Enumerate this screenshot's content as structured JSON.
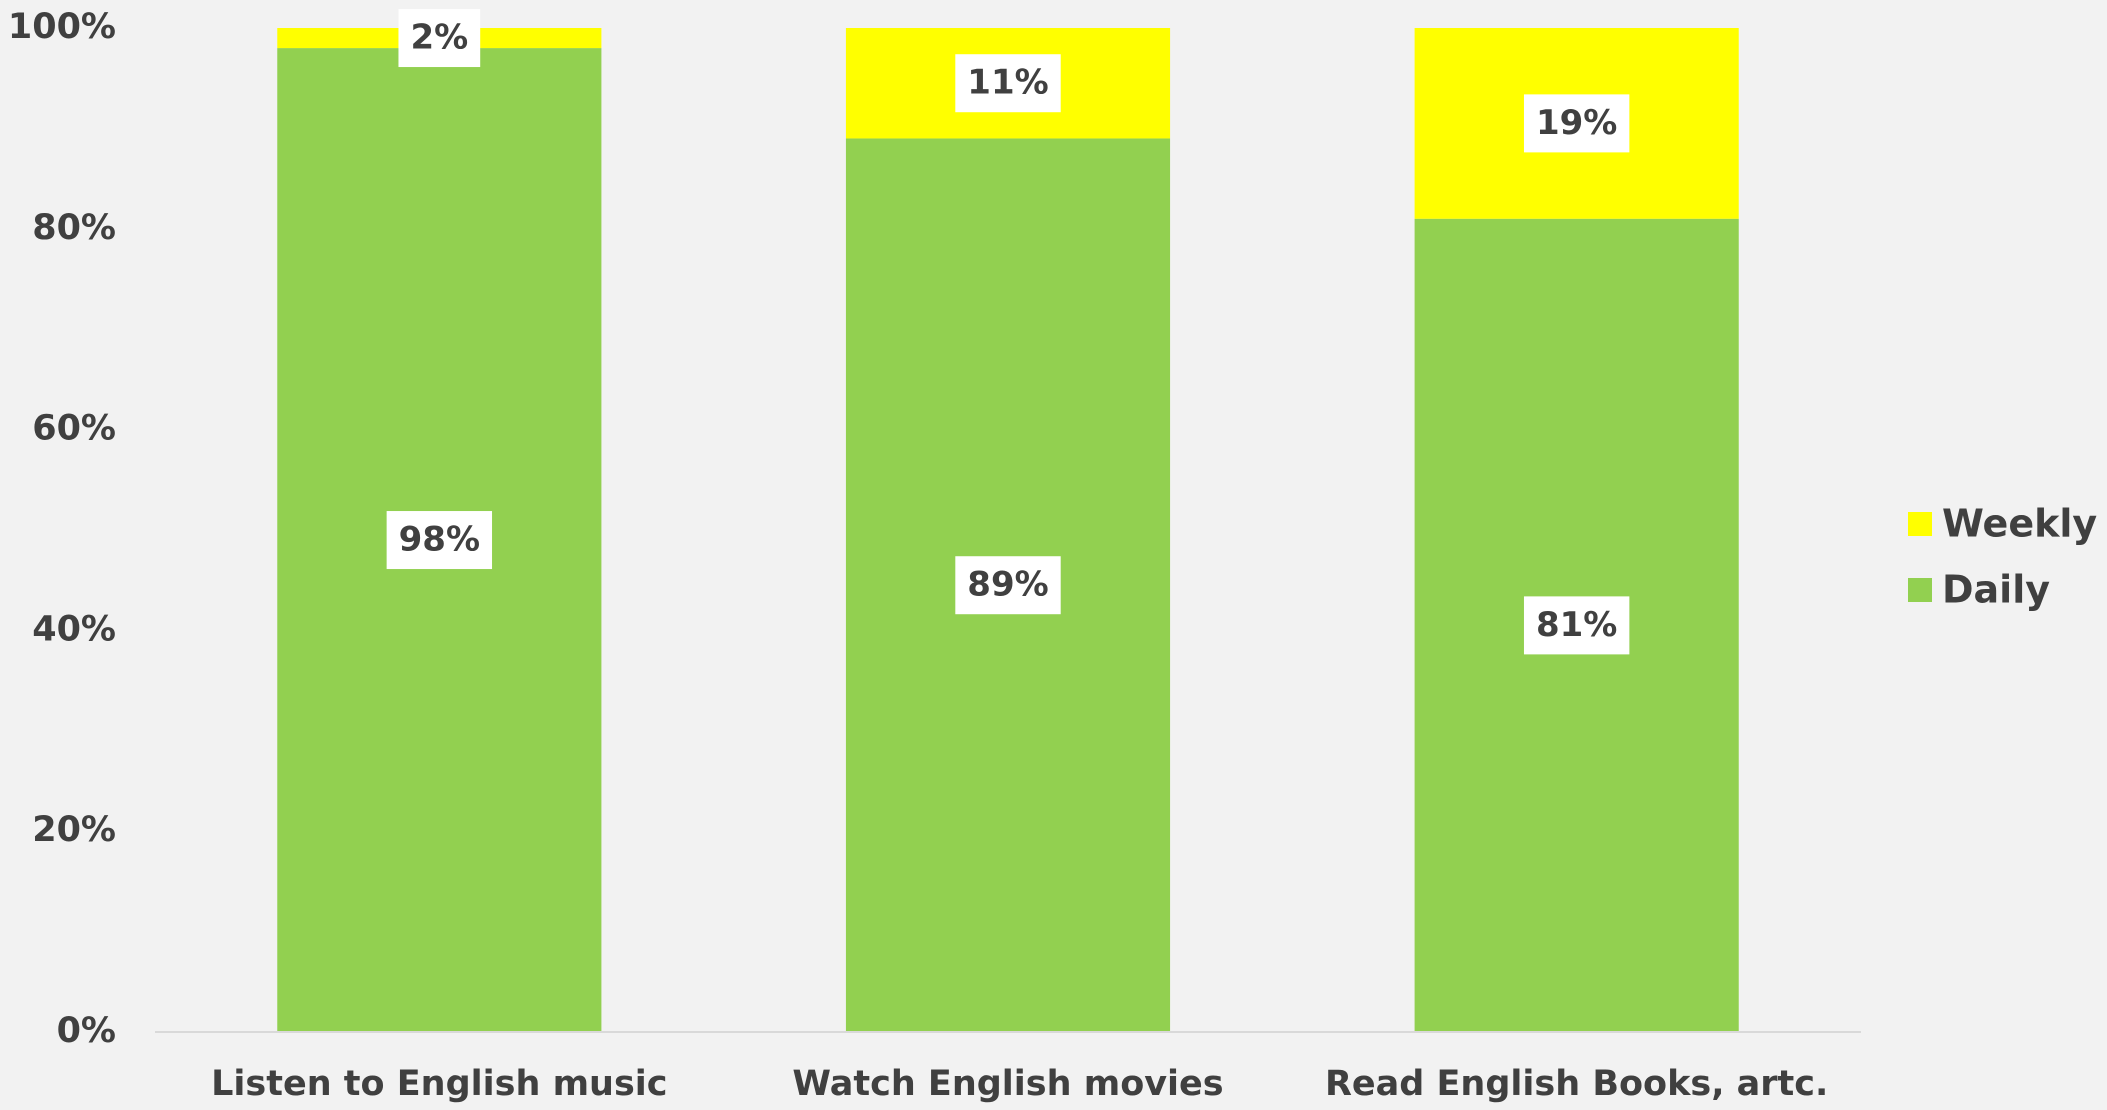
{
  "chart_data": {
    "type": "stacked-bar",
    "categories": [
      "Listen to English music",
      "Watch English movies",
      "Read English Books, artc."
    ],
    "series": [
      {
        "name": "Daily",
        "color": "#92d050",
        "values": [
          98,
          89,
          81
        ],
        "value_labels": [
          "98%",
          "89%",
          "81%"
        ]
      },
      {
        "name": "Weekly",
        "color": "#ffff00",
        "values": [
          2,
          11,
          19
        ],
        "value_labels": [
          "2%",
          "11%",
          "19%"
        ]
      }
    ],
    "ylim": [
      0,
      100
    ],
    "yticks": [
      {
        "value": 0,
        "label": "0%"
      },
      {
        "value": 20,
        "label": "20%"
      },
      {
        "value": 40,
        "label": "40%"
      },
      {
        "value": 60,
        "label": "60%"
      },
      {
        "value": 80,
        "label": "80%"
      },
      {
        "value": 100,
        "label": "100%"
      }
    ],
    "grid": false,
    "legend": "right"
  }
}
